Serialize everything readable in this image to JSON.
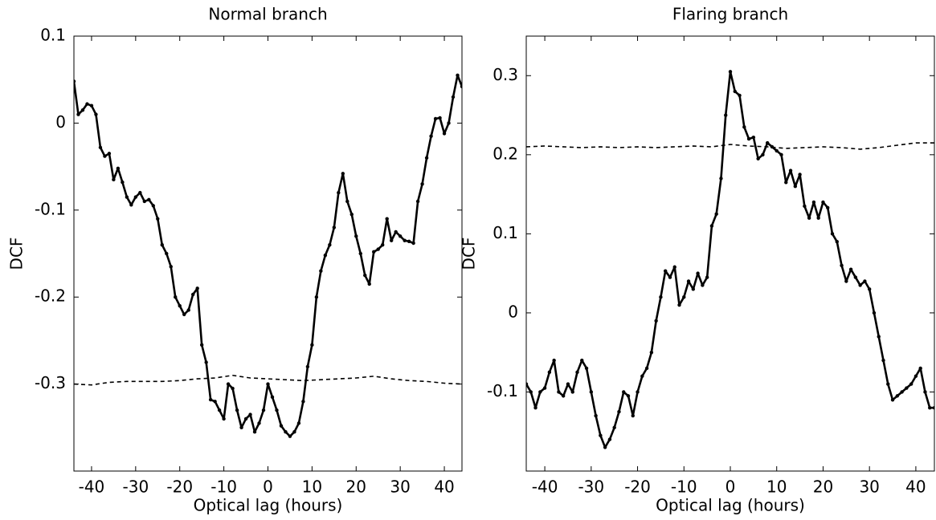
{
  "chart_data": [
    {
      "type": "line",
      "title": "Normal branch",
      "xlabel": "Optical lag (hours)",
      "ylabel": "DCF",
      "xlim": [
        -44,
        44
      ],
      "ylim": [
        -0.4,
        0.1
      ],
      "xticks": [
        -40,
        -30,
        -20,
        -10,
        0,
        10,
        20,
        30,
        40
      ],
      "yticks": [
        -0.3,
        -0.2,
        -0.1,
        0,
        0.1
      ],
      "series": [
        {
          "color": "#000000",
          "style": "solid",
          "markers": true,
          "x": [
            -44,
            -43,
            -42,
            -41,
            -40,
            -39,
            -38,
            -37,
            -36,
            -35,
            -34,
            -33,
            -32,
            -31,
            -30,
            -29,
            -28,
            -27,
            -26,
            -25,
            -24,
            -23,
            -22,
            -21,
            -20,
            -19,
            -18,
            -17,
            -16,
            -15,
            -14,
            -13,
            -12,
            -11,
            -10,
            -9,
            -8,
            -7,
            -6,
            -5,
            -4,
            -3,
            -2,
            -1,
            0,
            1,
            2,
            3,
            4,
            5,
            6,
            7,
            8,
            9,
            10,
            11,
            12,
            13,
            14,
            15,
            16,
            17,
            18,
            19,
            20,
            21,
            22,
            23,
            24,
            25,
            26,
            27,
            28,
            29,
            30,
            31,
            32,
            33,
            34,
            35,
            36,
            37,
            38,
            39,
            40,
            41,
            42,
            43,
            44
          ],
          "values": [
            0.048,
            0.01,
            0.015,
            0.022,
            0.02,
            0.01,
            -0.028,
            -0.038,
            -0.035,
            -0.065,
            -0.052,
            -0.068,
            -0.085,
            -0.094,
            -0.085,
            -0.08,
            -0.09,
            -0.088,
            -0.095,
            -0.11,
            -0.14,
            -0.15,
            -0.165,
            -0.2,
            -0.21,
            -0.22,
            -0.215,
            -0.197,
            -0.19,
            -0.255,
            -0.275,
            -0.318,
            -0.32,
            -0.33,
            -0.34,
            -0.3,
            -0.305,
            -0.33,
            -0.35,
            -0.34,
            -0.335,
            -0.355,
            -0.345,
            -0.33,
            -0.3,
            -0.315,
            -0.33,
            -0.348,
            -0.355,
            -0.36,
            -0.355,
            -0.345,
            -0.32,
            -0.28,
            -0.255,
            -0.2,
            -0.17,
            -0.152,
            -0.14,
            -0.12,
            -0.08,
            -0.058,
            -0.09,
            -0.105,
            -0.13,
            -0.15,
            -0.175,
            -0.185,
            -0.148,
            -0.145,
            -0.14,
            -0.11,
            -0.135,
            -0.125,
            -0.13,
            -0.135,
            -0.136,
            -0.138,
            -0.09,
            -0.07,
            -0.04,
            -0.015,
            0.005,
            0.006,
            -0.012,
            0.0,
            0.03,
            0.055,
            0.042
          ]
        },
        {
          "color": "#000000",
          "style": "dashed",
          "markers": false,
          "x": [
            -44,
            -40,
            -36,
            -32,
            -28,
            -24,
            -20,
            -16,
            -12,
            -8,
            -4,
            0,
            4,
            8,
            12,
            16,
            20,
            24,
            28,
            32,
            36,
            40,
            44
          ],
          "values": [
            -0.3,
            -0.301,
            -0.298,
            -0.297,
            -0.297,
            -0.297,
            -0.296,
            -0.294,
            -0.293,
            -0.29,
            -0.293,
            -0.294,
            -0.295,
            -0.296,
            -0.295,
            -0.294,
            -0.293,
            -0.291,
            -0.294,
            -0.296,
            -0.297,
            -0.299,
            -0.3
          ]
        }
      ]
    },
    {
      "type": "line",
      "title": "Flaring branch",
      "xlabel": "Optical lag (hours)",
      "ylabel": "DCF",
      "xlim": [
        -44,
        44
      ],
      "ylim": [
        -0.2,
        0.35
      ],
      "xticks": [
        -40,
        -30,
        -20,
        -10,
        0,
        10,
        20,
        30,
        40
      ],
      "yticks": [
        -0.1,
        0,
        0.1,
        0.2,
        0.3
      ],
      "series": [
        {
          "color": "#000000",
          "style": "solid",
          "markers": true,
          "x": [
            -44,
            -43,
            -42,
            -41,
            -40,
            -39,
            -38,
            -37,
            -36,
            -35,
            -34,
            -33,
            -32,
            -31,
            -30,
            -29,
            -28,
            -27,
            -26,
            -25,
            -24,
            -23,
            -22,
            -21,
            -20,
            -19,
            -18,
            -17,
            -16,
            -15,
            -14,
            -13,
            -12,
            -11,
            -10,
            -9,
            -8,
            -7,
            -6,
            -5,
            -4,
            -3,
            -2,
            -1,
            0,
            1,
            2,
            3,
            4,
            5,
            6,
            7,
            8,
            9,
            10,
            11,
            12,
            13,
            14,
            15,
            16,
            17,
            18,
            19,
            20,
            21,
            22,
            23,
            24,
            25,
            26,
            27,
            28,
            29,
            30,
            31,
            32,
            33,
            34,
            35,
            36,
            37,
            38,
            39,
            40,
            41,
            42,
            43,
            44
          ],
          "values": [
            -0.09,
            -0.1,
            -0.12,
            -0.1,
            -0.095,
            -0.075,
            -0.06,
            -0.1,
            -0.105,
            -0.09,
            -0.1,
            -0.075,
            -0.06,
            -0.07,
            -0.1,
            -0.13,
            -0.155,
            -0.17,
            -0.16,
            -0.145,
            -0.125,
            -0.1,
            -0.105,
            -0.13,
            -0.1,
            -0.08,
            -0.07,
            -0.05,
            -0.01,
            0.02,
            0.053,
            0.045,
            0.058,
            0.01,
            0.02,
            0.04,
            0.03,
            0.05,
            0.035,
            0.045,
            0.11,
            0.125,
            0.17,
            0.25,
            0.305,
            0.28,
            0.275,
            0.235,
            0.22,
            0.222,
            0.195,
            0.2,
            0.215,
            0.21,
            0.205,
            0.2,
            0.165,
            0.18,
            0.16,
            0.175,
            0.135,
            0.12,
            0.14,
            0.12,
            0.14,
            0.133,
            0.1,
            0.09,
            0.06,
            0.04,
            0.055,
            0.045,
            0.035,
            0.04,
            0.03,
            0.0,
            -0.03,
            -0.06,
            -0.09,
            -0.11,
            -0.105,
            -0.1,
            -0.095,
            -0.09,
            -0.08,
            -0.07,
            -0.1,
            -0.12,
            -0.12
          ]
        },
        {
          "color": "#000000",
          "style": "dashed",
          "markers": false,
          "x": [
            -44,
            -40,
            -36,
            -32,
            -28,
            -24,
            -20,
            -16,
            -12,
            -8,
            -4,
            0,
            4,
            8,
            12,
            16,
            20,
            24,
            28,
            32,
            36,
            40,
            44
          ],
          "values": [
            0.21,
            0.211,
            0.21,
            0.209,
            0.21,
            0.209,
            0.21,
            0.209,
            0.21,
            0.211,
            0.21,
            0.213,
            0.211,
            0.21,
            0.208,
            0.209,
            0.21,
            0.209,
            0.207,
            0.209,
            0.212,
            0.215,
            0.215
          ]
        }
      ]
    }
  ]
}
